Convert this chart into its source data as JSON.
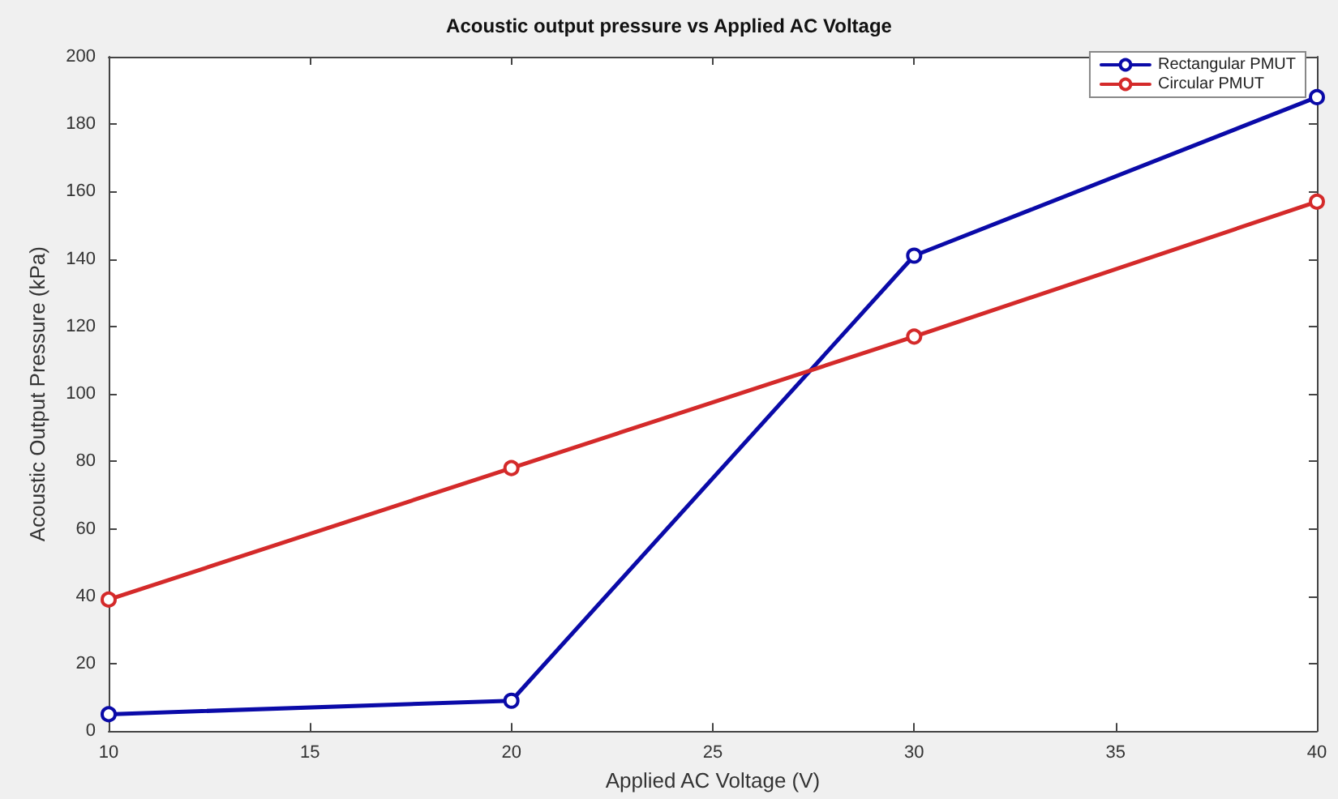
{
  "chart_data": {
    "type": "line",
    "title": "Acoustic output pressure vs Applied AC Voltage",
    "xlabel": "Applied AC Voltage (V)",
    "ylabel": "Acoustic Output Pressure (kPa)",
    "x": [
      10,
      20,
      30,
      40
    ],
    "series": [
      {
        "name": "Rectangular PMUT",
        "color": "#0a0aa8",
        "values": [
          5,
          9,
          141,
          188
        ]
      },
      {
        "name": "Circular PMUT",
        "color": "#d42a2a",
        "values": [
          39,
          78,
          117,
          157
        ]
      }
    ],
    "xlim": [
      10,
      40
    ],
    "xticks": [
      10,
      15,
      20,
      25,
      30,
      35,
      40
    ],
    "ylim": [
      0,
      200
    ],
    "yticks": [
      0,
      20,
      40,
      60,
      80,
      100,
      120,
      140,
      160,
      180,
      200
    ],
    "grid": false,
    "legend": "top right",
    "marker": "circle",
    "line_style": "solid"
  }
}
